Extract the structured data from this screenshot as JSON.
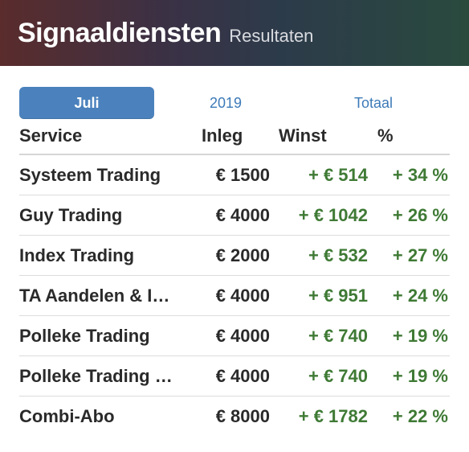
{
  "header": {
    "title": "Signaaldiensten",
    "subtitle": "Resultaten"
  },
  "tabs": [
    {
      "label": "Juli",
      "active": true
    },
    {
      "label": "2019",
      "active": false
    },
    {
      "label": "Totaal",
      "active": false
    }
  ],
  "table": {
    "columns": [
      "Service",
      "Inleg",
      "Winst",
      "%"
    ],
    "rows": [
      {
        "name": "Systeem Trading",
        "inleg": "€ 1500",
        "winst": "+ € 514",
        "pct": "+ 34 %"
      },
      {
        "name": "Guy Trading",
        "inleg": "€ 4000",
        "winst": "+ € 1042",
        "pct": "+ 26 %"
      },
      {
        "name": "Index Trading",
        "inleg": "€ 2000",
        "winst": "+ € 532",
        "pct": "+ 27 %"
      },
      {
        "name": "TA Aandelen & I…",
        "inleg": "€ 4000",
        "winst": "+ € 951",
        "pct": "+ 24 %"
      },
      {
        "name": "Polleke Trading",
        "inleg": "€ 4000",
        "winst": "+ € 740",
        "pct": "+ 19 %"
      },
      {
        "name": "Polleke Trading …",
        "inleg": "€ 4000",
        "winst": "+ € 740",
        "pct": "+ 19 %"
      },
      {
        "name": "Combi-Abo",
        "inleg": "€ 8000",
        "winst": "+ € 1782",
        "pct": "+ 22 %"
      }
    ]
  },
  "colors": {
    "accent": "#4b82bd",
    "positive": "#3f7a35",
    "link": "#3d7ab8"
  }
}
